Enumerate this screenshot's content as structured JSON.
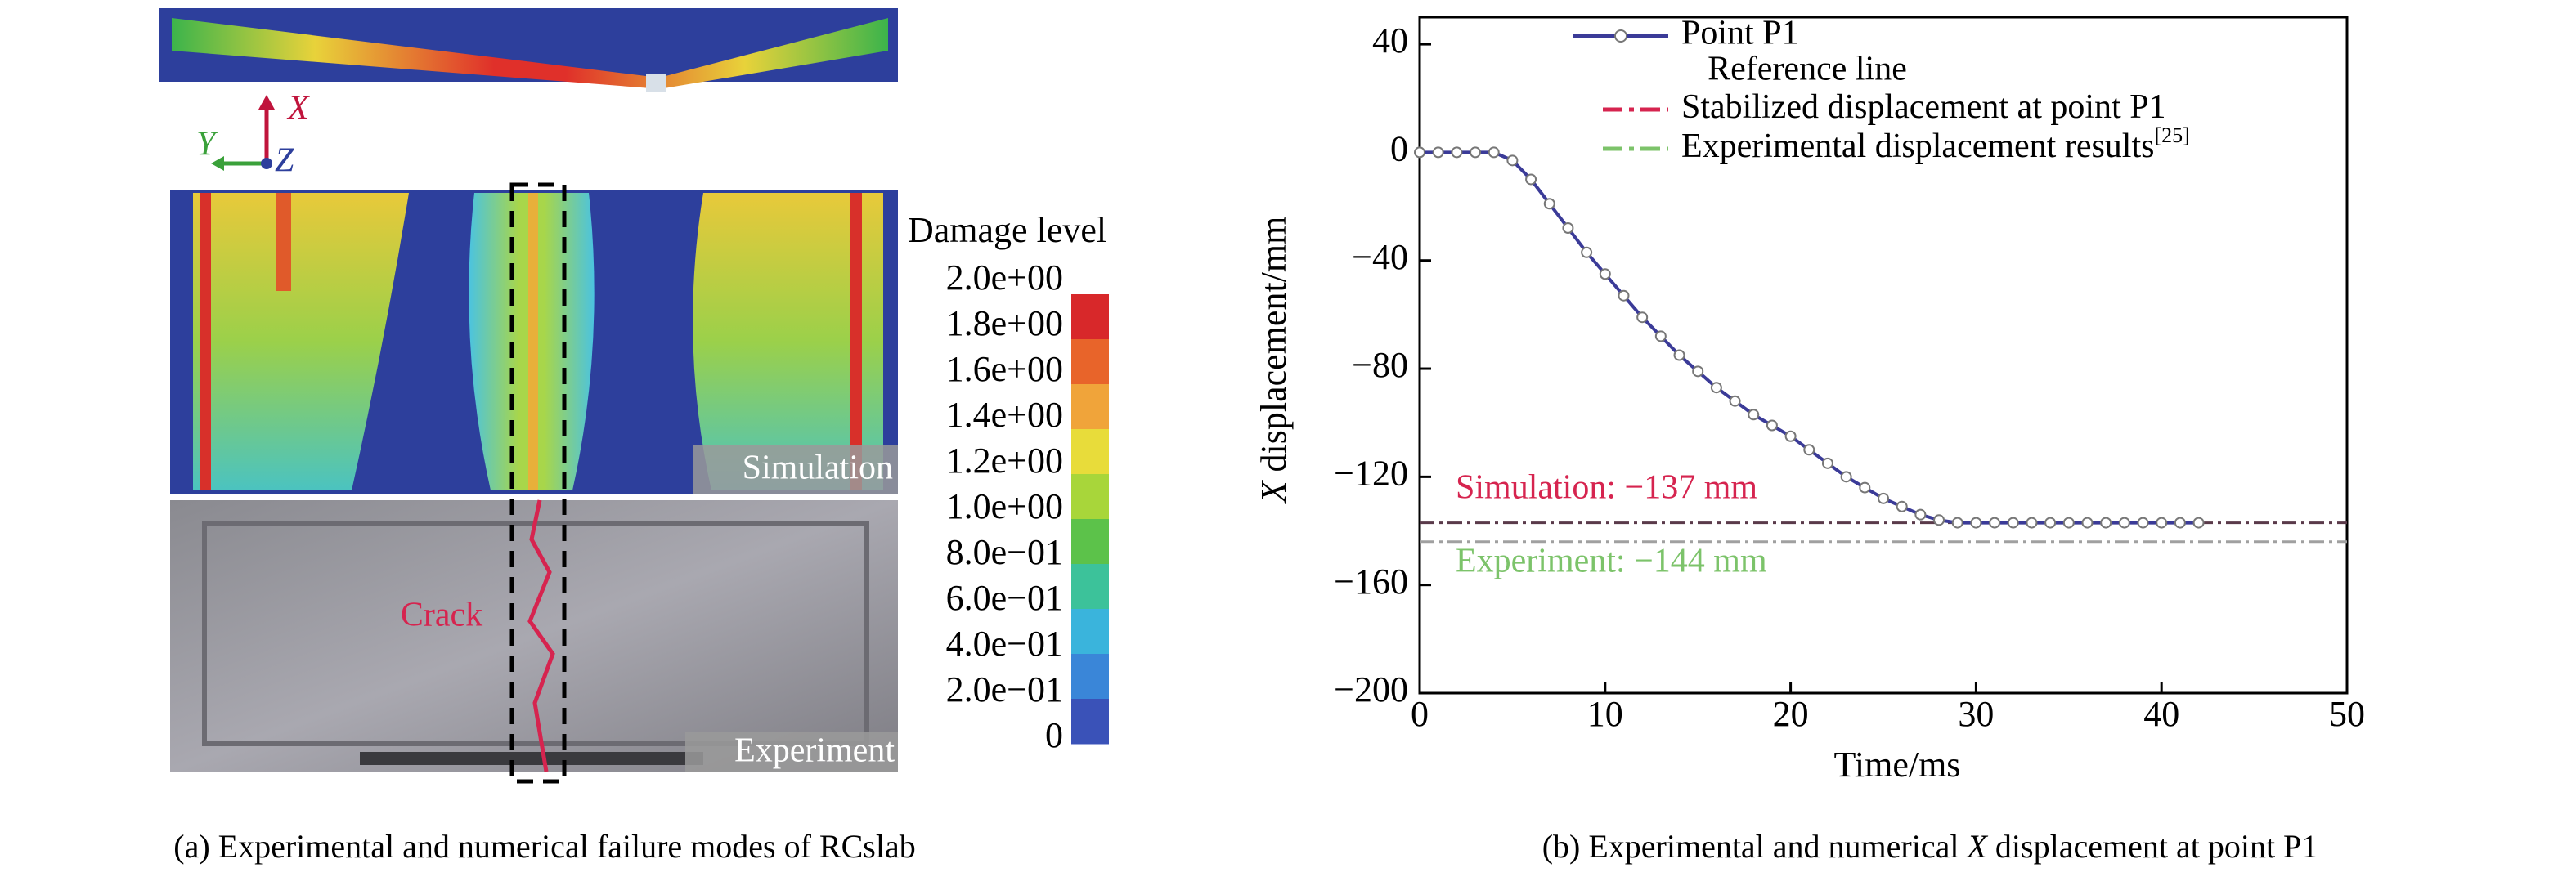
{
  "panel_a": {
    "caption": "(a) Experimental and numerical failure modes of RCslab",
    "axis_triad": {
      "x": "X",
      "y": "Y",
      "z": "Z"
    },
    "simulation_label": "Simulation",
    "experiment_label": "Experiment",
    "crack_label": "Crack",
    "colorbar": {
      "title": "Damage level",
      "labels": [
        "2.0e+00",
        "1.8e+00",
        "1.6e+00",
        "1.4e+00",
        "1.2e+00",
        "1.0e+00",
        "8.0e−01",
        "6.0e−01",
        "4.0e−01",
        "2.0e−01",
        "0"
      ]
    }
  },
  "chart_data": {
    "type": "line",
    "caption": [
      "(b) Experimental and numerical ",
      "X",
      " displacement at point P1"
    ],
    "xlabel": "Time/ms",
    "ylabel": [
      "X",
      " displacement/mm"
    ],
    "xlim": [
      0,
      50
    ],
    "xticks": [
      0,
      10,
      20,
      30,
      40,
      50
    ],
    "ylim": [
      -200,
      50
    ],
    "yticks": [
      {
        "value": -200,
        "label": "−200"
      },
      {
        "value": -160,
        "label": "−160"
      },
      {
        "value": -120,
        "label": "−120"
      },
      {
        "value": -80,
        "label": "−80"
      },
      {
        "value": -40,
        "label": "−40"
      },
      0,
      40
    ],
    "x": [
      0,
      1,
      2,
      3,
      4,
      5,
      6,
      7,
      8,
      9,
      10,
      11,
      12,
      13,
      14,
      15,
      16,
      17,
      18,
      19,
      20,
      21,
      22,
      23,
      24,
      25,
      26,
      27,
      28,
      29,
      30,
      31,
      32,
      33,
      34,
      35,
      36,
      37,
      38,
      39,
      40,
      41,
      42
    ],
    "series": [
      {
        "name": "Point P1",
        "color": "#3b3b98",
        "values": [
          0,
          0,
          0,
          0,
          0,
          -3,
          -10,
          -19,
          -28,
          -37,
          -45,
          -53,
          -61,
          -68,
          -75,
          -81,
          -87,
          -92,
          -97,
          -101,
          -105,
          -110,
          -115,
          -120,
          -124,
          -128,
          -131,
          -134,
          -136,
          -137,
          -137,
          -137,
          -137,
          -137,
          -137,
          -137,
          -137,
          -137,
          -137,
          -137,
          -137,
          -137,
          -137
        ]
      }
    ],
    "legend_title": "Reference line",
    "reference_lines": [
      {
        "name": "Stabilized displacement at point P1",
        "value": -137,
        "color": "#d6244f",
        "annotation": "Simulation: −137 mm"
      },
      {
        "name": "Experimental displacement results",
        "note": "[25]",
        "value": -144,
        "color": "#7cc36a",
        "annotation": "Experiment: −144 mm"
      }
    ]
  }
}
